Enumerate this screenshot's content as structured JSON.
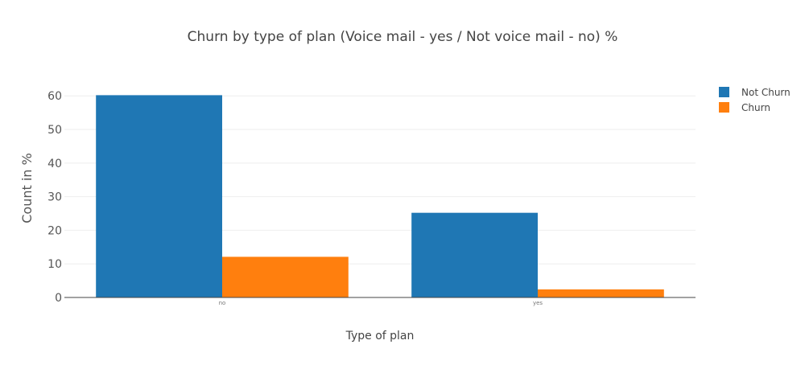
{
  "chart_data": {
    "type": "bar",
    "title": "Churn by type of plan (Voice mail - yes / Not voice mail - no) %",
    "xlabel": "Type of plan",
    "ylabel": "Count in %",
    "categories": [
      "no",
      "yes"
    ],
    "series": [
      {
        "name": "Not Churn",
        "color": "#1f77b4",
        "values": [
          60.2,
          25.2
        ]
      },
      {
        "name": "Churn",
        "color": "#ff7f0e",
        "values": [
          12.1,
          2.4
        ]
      }
    ],
    "ylim": [
      0,
      64.6
    ],
    "yticks": [
      0,
      10,
      20,
      30,
      40,
      50,
      60
    ],
    "grid": true,
    "legend_position": "top-right"
  }
}
